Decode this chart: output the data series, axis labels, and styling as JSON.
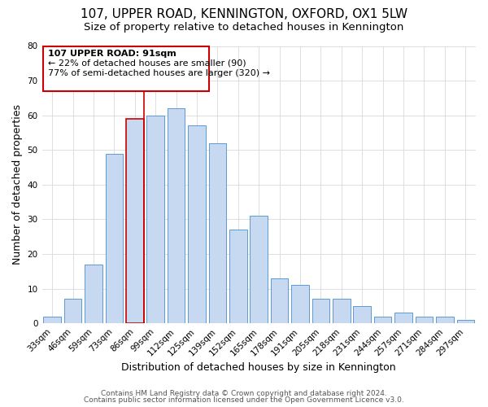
{
  "title": "107, UPPER ROAD, KENNINGTON, OXFORD, OX1 5LW",
  "subtitle": "Size of property relative to detached houses in Kennington",
  "xlabel": "Distribution of detached houses by size in Kennington",
  "ylabel": "Number of detached properties",
  "footer_line1": "Contains HM Land Registry data © Crown copyright and database right 2024.",
  "footer_line2": "Contains public sector information licensed under the Open Government Licence v3.0.",
  "bar_labels": [
    "33sqm",
    "46sqm",
    "59sqm",
    "73sqm",
    "86sqm",
    "99sqm",
    "112sqm",
    "125sqm",
    "139sqm",
    "152sqm",
    "165sqm",
    "178sqm",
    "191sqm",
    "205sqm",
    "218sqm",
    "231sqm",
    "244sqm",
    "257sqm",
    "271sqm",
    "284sqm",
    "297sqm"
  ],
  "bar_values": [
    2,
    7,
    17,
    49,
    59,
    60,
    62,
    57,
    52,
    27,
    31,
    13,
    11,
    7,
    7,
    5,
    2,
    3,
    2,
    2,
    1
  ],
  "bar_color": "#c6d9f0",
  "bar_edge_color": "#5b9bd5",
  "highlight_bar_index": 4,
  "vline_color": "#cc0000",
  "ylim": [
    0,
    80
  ],
  "yticks": [
    0,
    10,
    20,
    30,
    40,
    50,
    60,
    70,
    80
  ],
  "annotation_title": "107 UPPER ROAD: 91sqm",
  "annotation_line1": "← 22% of detached houses are smaller (90)",
  "annotation_line2": "77% of semi-detached houses are larger (320) →",
  "grid_color": "#d9d9d9",
  "background_color": "#ffffff",
  "title_fontsize": 11,
  "subtitle_fontsize": 9.5,
  "axis_label_fontsize": 9,
  "tick_fontsize": 7.5,
  "annotation_fontsize": 8,
  "footer_fontsize": 6.5
}
